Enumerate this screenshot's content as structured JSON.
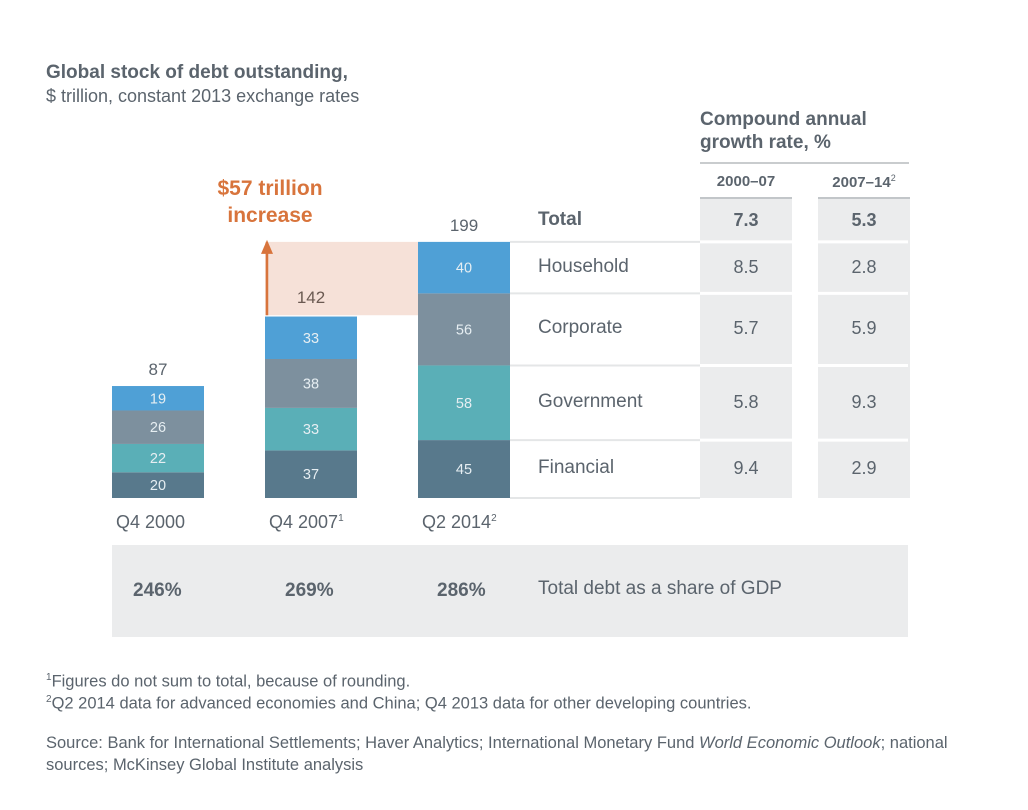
{
  "chart_data": {
    "type": "bar",
    "stacked": true,
    "title": "Global stock of debt outstanding,",
    "subtitle": "$ trillion, constant 2013 exchange rates",
    "categories": [
      {
        "label": "Q4 2000",
        "sup": ""
      },
      {
        "label": "Q4 2007",
        "sup": "1"
      },
      {
        "label": "Q2 2014",
        "sup": "2"
      }
    ],
    "totals": [
      87,
      142,
      199
    ],
    "series": [
      {
        "name": "Financial",
        "color": "#58798c",
        "values": [
          20,
          37,
          45
        ]
      },
      {
        "name": "Government",
        "color": "#5aafb7",
        "values": [
          22,
          33,
          58
        ]
      },
      {
        "name": "Corporate",
        "color": "#7d909e",
        "values": [
          26,
          38,
          56
        ]
      },
      {
        "name": "Household",
        "color": "#4fa0d6",
        "values": [
          19,
          33,
          40
        ]
      }
    ],
    "annotation": {
      "text_line1": "$57 trillion",
      "text_line2": "increase",
      "from_value": 142,
      "to_value": 199,
      "color": "#d8743c",
      "band_color": "#f6e1d8"
    },
    "ylim": [
      0,
      199
    ],
    "grid": false,
    "xlabel": "",
    "ylabel": "",
    "cagr_table": {
      "title_line1": "Compound annual",
      "title_line2": "growth rate, %",
      "columns": [
        {
          "label": "2000–07",
          "sup": ""
        },
        {
          "label": "2007–14",
          "sup": "2"
        }
      ],
      "rows": [
        {
          "label": "Total",
          "values": [
            "7.3",
            "5.3"
          ],
          "bold": true
        },
        {
          "label": "Household",
          "values": [
            "8.5",
            "2.8"
          ],
          "bold": false
        },
        {
          "label": "Corporate",
          "values": [
            "5.7",
            "5.9"
          ],
          "bold": false
        },
        {
          "label": "Government",
          "values": [
            "5.8",
            "9.3"
          ],
          "bold": false
        },
        {
          "label": "Financial",
          "values": [
            "9.4",
            "2.9"
          ],
          "bold": false
        }
      ]
    },
    "gdp_share": {
      "values": [
        "246%",
        "269%",
        "286%"
      ],
      "label": "Total debt as a share of GDP"
    }
  },
  "footnotes": [
    {
      "marker": "1",
      "text": "Figures do not sum to total, because of rounding."
    },
    {
      "marker": "2",
      "text": "Q2 2014 data for advanced economies and China; Q4 2013 data for other developing countries."
    }
  ],
  "source": {
    "prefix": "Source: Bank for International Settlements; Haver Analytics; International Monetary Fund ",
    "italic": "World Economic Outlook",
    "suffix": "; national sources; McKinsey Global Institute analysis"
  },
  "colors": {
    "text": "#5b646d",
    "table_fill": "#ebeced",
    "divider": "#e4e6e7"
  }
}
